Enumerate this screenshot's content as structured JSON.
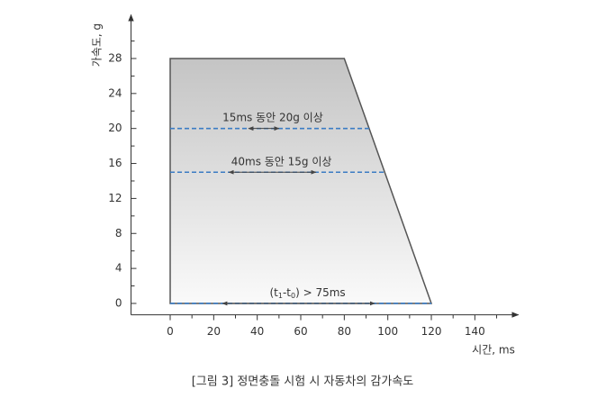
{
  "chart_data": {
    "type": "polygon",
    "x": [
      0,
      0,
      80,
      120
    ],
    "values": [
      0,
      28,
      28,
      0
    ],
    "colors": [
      "#c4c4c4",
      "#fafafa"
    ],
    "edge_color": "#555555",
    "xlabel": "시간, ms",
    "ylabel": "가속도, g",
    "caption": "[그림 3] 정면충돌 시험 시 자동차의 감가속도",
    "xlim": [
      -18,
      160
    ],
    "ylim": [
      -1.3,
      33
    ],
    "xticks": [
      0,
      20,
      40,
      60,
      80,
      100,
      120,
      140
    ],
    "yticks": [
      0,
      4,
      8,
      12,
      16,
      20,
      24,
      28
    ],
    "xminorticks": [
      10,
      30,
      50,
      70,
      90,
      110,
      130,
      150
    ],
    "yminorticks": [
      2,
      6,
      10,
      14,
      18,
      22,
      26,
      30
    ],
    "annotations": [
      {
        "y": 20,
        "x_end": 91.4,
        "arrow": [
          36,
          50
        ],
        "label": [
          "15ms 동안 20g 이상"
        ]
      },
      {
        "y": 15,
        "x_end": 98.6,
        "arrow": [
          27,
          67
        ],
        "label": [
          "40ms 동안 15g 이상"
        ]
      },
      {
        "y": 0,
        "x_end": 120,
        "arrow": [
          24,
          94
        ],
        "label": [
          "(t",
          "1",
          "-t",
          "0",
          ") > 75ms"
        ]
      }
    ],
    "dash_color": "#3b7cc4"
  }
}
